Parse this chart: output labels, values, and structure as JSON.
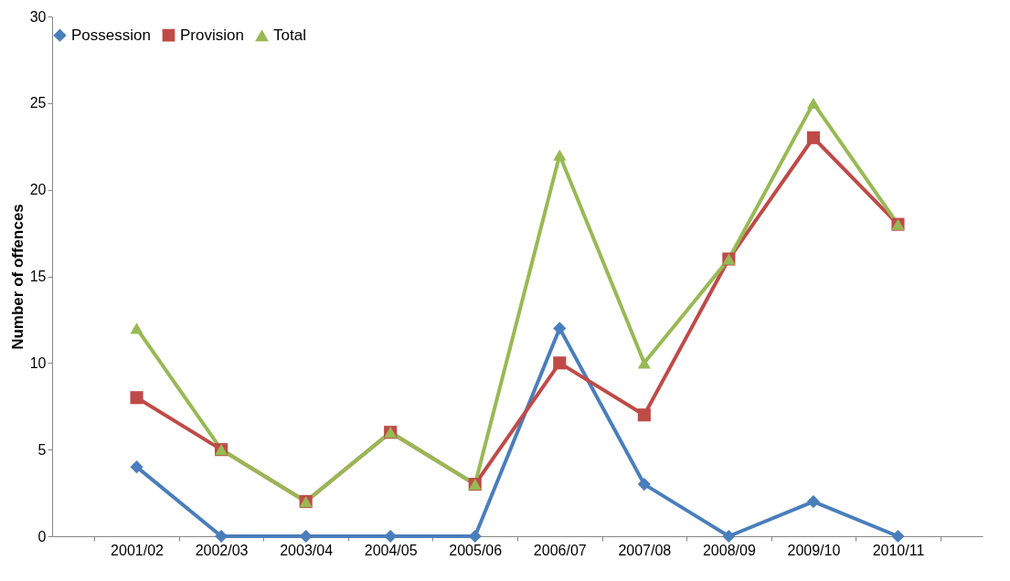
{
  "chart_data": {
    "type": "line",
    "ylabel": "Number of offences",
    "categories": [
      "2001/02",
      "2002/03",
      "2003/04",
      "2004/05",
      "2005/06",
      "2006/07",
      "2007/08",
      "2008/09",
      "2009/10",
      "2010/11"
    ],
    "series": [
      {
        "name": "Possession",
        "color": "#4a7ebb",
        "marker": "diamond",
        "values": [
          4,
          0,
          0,
          0,
          0,
          12,
          3,
          0,
          2,
          0
        ]
      },
      {
        "name": "Provision",
        "color": "#be4b48",
        "marker": "square",
        "values": [
          8,
          5,
          2,
          6,
          3,
          10,
          7,
          16,
          23,
          18
        ]
      },
      {
        "name": "Total",
        "color": "#98b954",
        "marker": "triangle",
        "values": [
          12,
          5,
          2,
          6,
          3,
          22,
          10,
          16,
          25,
          18
        ]
      }
    ],
    "ylim": [
      0,
      30
    ],
    "yticks": [
      0,
      5,
      10,
      15,
      20,
      25,
      30
    ],
    "grid": false,
    "legend": "top",
    "line_style": "solid"
  }
}
